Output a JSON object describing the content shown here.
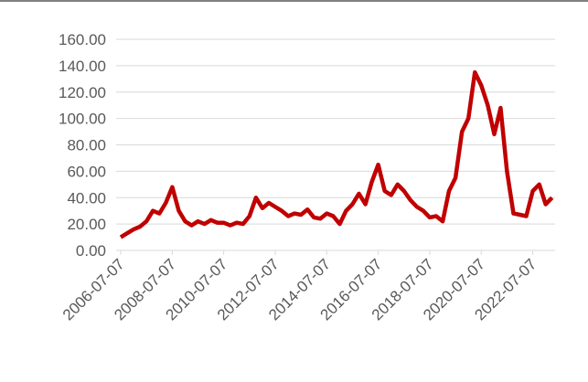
{
  "chart_data": {
    "type": "line",
    "x": [
      "2006-07-07",
      "2006-10-07",
      "2007-01-07",
      "2007-04-07",
      "2007-07-07",
      "2007-10-07",
      "2008-01-07",
      "2008-04-07",
      "2008-07-07",
      "2008-10-07",
      "2009-01-07",
      "2009-04-07",
      "2009-07-07",
      "2009-10-07",
      "2010-01-07",
      "2010-04-07",
      "2010-07-07",
      "2010-10-07",
      "2011-01-07",
      "2011-04-07",
      "2011-07-07",
      "2011-10-07",
      "2012-01-07",
      "2012-04-07",
      "2012-07-07",
      "2012-10-07",
      "2013-01-07",
      "2013-04-07",
      "2013-07-07",
      "2013-10-07",
      "2014-01-07",
      "2014-04-07",
      "2014-07-07",
      "2014-10-07",
      "2015-01-07",
      "2015-04-07",
      "2015-07-07",
      "2015-10-07",
      "2016-01-07",
      "2016-04-07",
      "2016-07-07",
      "2016-10-07",
      "2017-01-07",
      "2017-04-07",
      "2017-07-07",
      "2017-10-07",
      "2018-01-07",
      "2018-04-07",
      "2018-07-07",
      "2018-10-07",
      "2019-01-07",
      "2019-04-07",
      "2019-07-07",
      "2019-10-07",
      "2020-01-07",
      "2020-04-07",
      "2020-07-07",
      "2020-10-07",
      "2021-01-07",
      "2021-04-07",
      "2021-07-07",
      "2021-10-07",
      "2022-01-07",
      "2022-04-07",
      "2022-07-07",
      "2022-10-07",
      "2023-01-07",
      "2023-04-07"
    ],
    "series": [
      {
        "color": "#c00000",
        "values": [
          10,
          13,
          16,
          18,
          22,
          30,
          28,
          36,
          48,
          30,
          22,
          19,
          22,
          20,
          23,
          21,
          21,
          19,
          21,
          20,
          26,
          40,
          32,
          36,
          33,
          30,
          26,
          28,
          27,
          31,
          25,
          24,
          28,
          26,
          20,
          30,
          35,
          43,
          35,
          52,
          65,
          45,
          42,
          50,
          45,
          38,
          33,
          30,
          25,
          26,
          22,
          45,
          55,
          90,
          100,
          135,
          125,
          110,
          88,
          108,
          60,
          28,
          27,
          26,
          45,
          50,
          35,
          40
        ]
      }
    ],
    "xlim": [
      "2006-07-07",
      "2023-05-07"
    ],
    "xticks": [
      "2006-07-07",
      "2008-07-07",
      "2010-07-07",
      "2012-07-07",
      "2014-07-07",
      "2016-07-07",
      "2018-07-07",
      "2020-07-07",
      "2022-07-07"
    ],
    "ylim": [
      0,
      160
    ],
    "yticks": [
      {
        "value": 0,
        "label": "0.00"
      },
      {
        "value": 20,
        "label": "20.00"
      },
      {
        "value": 40,
        "label": "40.00"
      },
      {
        "value": 60,
        "label": "60.00"
      },
      {
        "value": 80,
        "label": "80.00"
      },
      {
        "value": 100,
        "label": "100.00"
      },
      {
        "value": 120,
        "label": "120.00"
      },
      {
        "value": 140,
        "label": "140.00"
      },
      {
        "value": 160,
        "label": "160.00"
      }
    ],
    "grid": true
  }
}
